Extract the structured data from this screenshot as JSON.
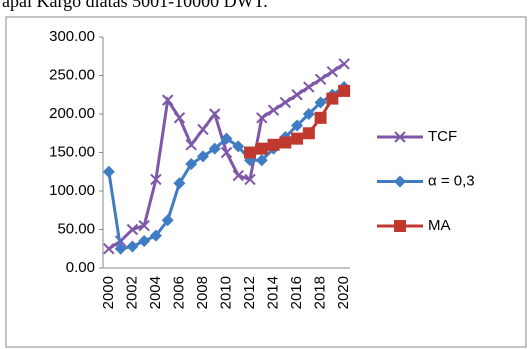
{
  "caption": "apal Kargo diatas 5001-10000 DWT.",
  "chart_data": {
    "type": "line",
    "categories": [
      "2000",
      null,
      "2002",
      null,
      "2004",
      null,
      "2006",
      null,
      "2008",
      null,
      "2010",
      null,
      "2012",
      null,
      "2014",
      null,
      "2016",
      null,
      "2018",
      null,
      "2020"
    ],
    "series": [
      {
        "name": "TCF",
        "color": "#7e57a8",
        "marker": "x",
        "values": [
          25,
          35,
          50,
          55,
          115,
          218,
          195,
          160,
          180,
          200,
          150,
          120,
          115,
          195,
          205,
          215,
          225,
          235,
          245,
          255,
          265
        ]
      },
      {
        "name": "α = 0,3",
        "color": "#3f7cc4",
        "marker": "diamond",
        "values": [
          125,
          25,
          28,
          35,
          42,
          62,
          110,
          135,
          145,
          155,
          168,
          158,
          140,
          140,
          155,
          170,
          185,
          200,
          215,
          225,
          235
        ]
      },
      {
        "name": "MA",
        "color": "#c0392f",
        "marker": "square",
        "values": [
          null,
          null,
          null,
          null,
          null,
          null,
          null,
          null,
          null,
          null,
          null,
          null,
          150,
          155,
          160,
          163,
          168,
          175,
          195,
          220,
          230
        ]
      }
    ],
    "ylim": [
      0,
      300
    ],
    "yticks": [
      {
        "value": 0,
        "label": "0.00"
      },
      {
        "value": 50,
        "label": "50.00"
      },
      {
        "value": 100,
        "label": "100.00"
      },
      {
        "value": 150,
        "label": "150.00"
      },
      {
        "value": 200,
        "label": "200.00"
      },
      {
        "value": 250,
        "label": "250.00"
      },
      {
        "value": 300,
        "label": "300.00"
      }
    ],
    "legend": "right"
  }
}
